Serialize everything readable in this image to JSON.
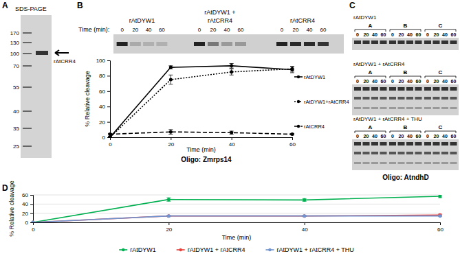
{
  "chart_data": [
    {
      "type": "line",
      "x_label": "Time (min)",
      "y_label": "% Relative cleavage",
      "annotation": "Oligo: Zmrps14",
      "x": [
        0,
        20,
        40,
        60
      ],
      "xlim": [
        0,
        60
      ],
      "xticks": [
        0,
        20,
        40,
        60
      ],
      "ylim": [
        0,
        100
      ],
      "yticks": [
        0,
        20,
        40,
        60,
        80,
        100
      ],
      "grid": false,
      "legend": "right",
      "series": [
        {
          "name": "rAtDYW1",
          "color": "#000000",
          "line_style": "solid",
          "marker": "circle",
          "values": [
            0,
            91,
            93,
            88
          ],
          "errors": [
            1,
            2,
            3,
            4
          ]
        },
        {
          "name": "rAtDYW1+rAtCRR4",
          "color": "#000000",
          "line_style": "dotted",
          "marker": "circle",
          "values": [
            0,
            75,
            85,
            89
          ],
          "errors": [
            1,
            6,
            4,
            3
          ]
        },
        {
          "name": "rAtCRR4",
          "color": "#000000",
          "line_style": "dashed",
          "marker": "circle",
          "values": [
            4,
            7,
            6,
            4
          ],
          "errors": [
            1,
            3,
            2,
            1
          ]
        }
      ]
    },
    {
      "type": "line",
      "x_label": "Time (min)",
      "y_label": "% Relative cleavage",
      "x": [
        0,
        20,
        40,
        60
      ],
      "xlim": [
        0,
        60
      ],
      "xticks": [
        0,
        20,
        40,
        60
      ],
      "ylim": [
        0,
        60
      ],
      "yticks": [
        0,
        20,
        40,
        60
      ],
      "grid": true,
      "legend": "bottom",
      "series": [
        {
          "name": "rAtDYW1",
          "color": "#00b050",
          "line_style": "solid",
          "marker": "circle",
          "values": [
            0,
            50,
            49,
            57
          ],
          "errors": [
            0,
            4,
            3,
            3
          ]
        },
        {
          "name": "rAtDYW1 + rAtCRR4",
          "color": "#e8403a",
          "line_style": "solid",
          "marker": "circle",
          "values": [
            0,
            14,
            14,
            16
          ],
          "errors": [
            0,
            1,
            1,
            2
          ]
        },
        {
          "name": "rAtDYW1 + rAtCRR4 + THU",
          "color": "#7094d0",
          "line_style": "solid",
          "marker": "circle",
          "values": [
            0,
            14,
            14,
            14
          ],
          "errors": [
            0,
            1,
            1,
            1
          ]
        }
      ]
    }
  ],
  "figure": {
    "A": {
      "label": "A",
      "title": "SDS-PAGE",
      "ladder": [
        170,
        130,
        100,
        70,
        55,
        40,
        35,
        25
      ],
      "band_label": "rAtCRR4"
    },
    "B": {
      "label": "B",
      "time_label": "Time (min):",
      "groups": [
        {
          "label": [
            "rAtDYW1"
          ],
          "lanes": [
            0,
            20,
            40,
            60
          ]
        },
        {
          "label": [
            "rAtDYW1 +",
            "rAtCRR4"
          ],
          "lanes": [
            0,
            20,
            40,
            60
          ]
        },
        {
          "label": [
            "rAtCRR4"
          ],
          "lanes": [
            0,
            20,
            40,
            60
          ]
        }
      ]
    },
    "C": {
      "label": "C",
      "annotation": "Oligo: AtndhD",
      "gels": [
        {
          "label": "rAtDYW1",
          "sets": [
            "A",
            "B",
            "C"
          ],
          "lanes": [
            0,
            20,
            40,
            60
          ]
        },
        {
          "label": "rAtDYW1 + rAtCRR4",
          "sets": [
            "A",
            "B",
            "C"
          ],
          "lanes": [
            0,
            20,
            40,
            60
          ]
        },
        {
          "label": "rAtDYW1 + rAtCRR4 + THU",
          "sets": [
            "A",
            "B",
            "C"
          ],
          "lanes": [
            0,
            20,
            40,
            60
          ]
        }
      ]
    },
    "D": {
      "label": "D"
    }
  }
}
